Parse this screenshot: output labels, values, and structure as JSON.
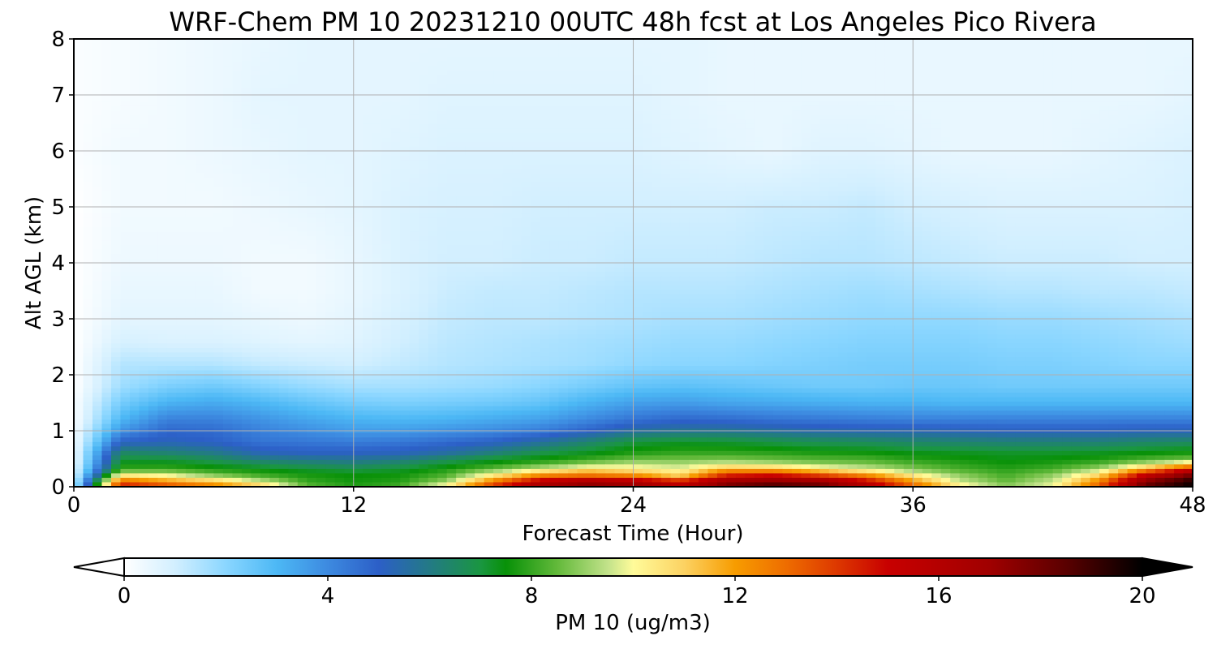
{
  "chart_data": {
    "type": "heatmap",
    "title": "WRF-Chem PM 10  20231210 00UTC 48h fcst at Los Angeles Pico Rivera",
    "xlabel": "Forecast Time (Hour)",
    "ylabel": "Alt AGL (km)",
    "xlim": [
      0,
      48
    ],
    "ylim": [
      0,
      8
    ],
    "x_ticks": [
      "0",
      "12",
      "24",
      "36",
      "48"
    ],
    "y_ticks": [
      "0",
      "1",
      "2",
      "3",
      "4",
      "5",
      "6",
      "7",
      "8"
    ],
    "grid": true,
    "x": [
      0,
      2,
      4,
      6,
      8,
      10,
      12,
      14,
      16,
      18,
      20,
      22,
      24,
      26,
      28,
      30,
      32,
      34,
      36,
      38,
      40,
      42,
      44,
      46,
      48
    ],
    "y": [
      0,
      0.1,
      0.2,
      0.3,
      0.4,
      0.5,
      0.6,
      0.8,
      1.0,
      1.2,
      1.5,
      1.8,
      2.2,
      2.6,
      3.0,
      3.5,
      4.0,
      5.0,
      6.0,
      7.0,
      8.0
    ],
    "colorbar": {
      "label": "PM 10  (ug/m3)",
      "range": [
        0,
        20
      ],
      "ticks": [
        "0",
        "4",
        "8",
        "12",
        "16",
        "20"
      ],
      "extend": "both",
      "stops": [
        [
          0,
          "#ffffff"
        ],
        [
          1,
          "#d2efff"
        ],
        [
          2,
          "#8ad6ff"
        ],
        [
          3,
          "#4cb8f5"
        ],
        [
          4,
          "#3d8ae0"
        ],
        [
          5,
          "#2c5fc7"
        ],
        [
          6,
          "#237a85"
        ],
        [
          7,
          "#1a9641"
        ],
        [
          7.5,
          "#089108"
        ],
        [
          8.5,
          "#62b93a"
        ],
        [
          9.5,
          "#c2e28a"
        ],
        [
          10,
          "#fffb9a"
        ],
        [
          11,
          "#fcd262"
        ],
        [
          12,
          "#f79c00"
        ],
        [
          13,
          "#ee6d00"
        ],
        [
          14,
          "#dd3800"
        ],
        [
          15,
          "#c80000"
        ],
        [
          17,
          "#a00000"
        ],
        [
          18.5,
          "#5a0000"
        ],
        [
          20,
          "#000000"
        ]
      ]
    },
    "values": [
      [
        1.0,
        15.0,
        14.0,
        13.0,
        11.5,
        8.5,
        7.8,
        8.2,
        10.5,
        14.5,
        17.0,
        17.8,
        17.5,
        16.0,
        18.0,
        19.0,
        18.5,
        16.5,
        13.5,
        10.5,
        9.0,
        10.0,
        13.5,
        18.5,
        20.0
      ],
      [
        0.8,
        13.0,
        12.0,
        11.0,
        9.5,
        8.0,
        7.6,
        7.8,
        9.0,
        12.5,
        15.5,
        16.5,
        16.0,
        14.5,
        17.0,
        17.5,
        17.0,
        15.0,
        12.0,
        9.5,
        8.5,
        9.5,
        12.5,
        17.5,
        19.5
      ],
      [
        0.6,
        10.5,
        10.0,
        9.0,
        8.2,
        7.7,
        7.5,
        7.6,
        8.3,
        10.5,
        12.5,
        13.0,
        12.5,
        11.0,
        14.5,
        15.0,
        14.0,
        12.5,
        10.5,
        9.0,
        8.2,
        9.0,
        11.0,
        15.5,
        18.0
      ],
      [
        0.5,
        8.2,
        8.3,
        7.8,
        7.5,
        7.2,
        7.0,
        7.2,
        7.8,
        8.8,
        10.0,
        11.0,
        10.5,
        10.0,
        12.0,
        12.0,
        11.0,
        10.0,
        9.0,
        8.3,
        7.9,
        8.3,
        9.5,
        12.5,
        15.5
      ],
      [
        0.4,
        7.5,
        7.5,
        7.2,
        6.8,
        6.5,
        6.3,
        6.6,
        7.2,
        7.7,
        8.3,
        9.0,
        9.5,
        9.3,
        9.8,
        9.5,
        9.0,
        8.8,
        8.3,
        7.9,
        7.6,
        7.8,
        8.3,
        9.5,
        11.0
      ],
      [
        0.3,
        7.0,
        7.0,
        6.6,
        6.0,
        5.8,
        5.7,
        5.9,
        6.5,
        7.1,
        7.5,
        8.0,
        8.5,
        8.6,
        8.7,
        8.5,
        8.3,
        8.2,
        7.8,
        7.6,
        7.4,
        7.5,
        7.7,
        8.2,
        8.6
      ],
      [
        0.3,
        6.5,
        6.3,
        6.0,
        5.3,
        5.1,
        5.1,
        5.2,
        5.6,
        6.2,
        6.9,
        7.3,
        7.8,
        8.0,
        8.0,
        7.9,
        7.7,
        7.6,
        7.4,
        7.3,
        7.2,
        7.2,
        7.3,
        7.5,
        7.7
      ],
      [
        0.2,
        5.0,
        5.2,
        5.0,
        4.5,
        4.4,
        4.3,
        4.4,
        4.7,
        5.0,
        5.6,
        6.3,
        7.0,
        7.2,
        7.1,
        6.9,
        6.7,
        6.6,
        6.4,
        6.3,
        6.2,
        6.2,
        6.2,
        6.4,
        6.5
      ],
      [
        0.2,
        3.8,
        4.8,
        4.7,
        4.2,
        3.9,
        3.6,
        3.6,
        3.8,
        4.0,
        4.3,
        4.9,
        5.6,
        5.8,
        5.8,
        5.6,
        5.4,
        5.3,
        5.3,
        5.2,
        5.1,
        5.1,
        5.1,
        5.2,
        5.2
      ],
      [
        0.1,
        3.0,
        4.2,
        4.2,
        3.8,
        3.4,
        3.1,
        3.0,
        3.1,
        3.3,
        3.5,
        4.0,
        4.5,
        4.8,
        4.7,
        4.5,
        4.4,
        4.3,
        4.2,
        4.2,
        4.2,
        4.2,
        4.2,
        4.2,
        4.2
      ],
      [
        0.1,
        2.3,
        3.1,
        3.3,
        3.0,
        2.6,
        2.3,
        2.2,
        2.3,
        2.4,
        2.6,
        3.1,
        3.5,
        3.6,
        3.4,
        3.3,
        3.2,
        3.1,
        3.1,
        3.0,
        3.0,
        3.0,
        3.0,
        3.0,
        3.0
      ],
      [
        0.0,
        1.7,
        2.2,
        2.4,
        2.1,
        1.8,
        1.6,
        1.6,
        1.7,
        1.8,
        2.0,
        2.3,
        2.6,
        2.7,
        2.6,
        2.5,
        2.4,
        2.4,
        2.5,
        2.5,
        2.4,
        2.4,
        2.4,
        2.4,
        2.4
      ],
      [
        0.0,
        1.4,
        1.4,
        1.4,
        1.2,
        1.1,
        1.0,
        1.2,
        1.4,
        1.5,
        1.6,
        1.7,
        1.9,
        2.0,
        2.0,
        2.1,
        2.2,
        2.3,
        2.3,
        2.3,
        2.2,
        2.2,
        2.1,
        2.0,
        2.0
      ],
      [
        0.0,
        0.9,
        0.8,
        0.8,
        0.7,
        0.6,
        0.7,
        1.0,
        1.3,
        1.4,
        1.5,
        1.6,
        1.7,
        1.8,
        1.8,
        1.9,
        2.0,
        2.1,
        2.1,
        2.1,
        2.0,
        2.0,
        1.9,
        1.8,
        1.7
      ],
      [
        0.0,
        0.6,
        0.6,
        0.6,
        0.5,
        0.4,
        0.6,
        0.9,
        1.2,
        1.3,
        1.3,
        1.4,
        1.5,
        1.6,
        1.6,
        1.7,
        1.8,
        1.9,
        1.9,
        1.9,
        1.8,
        1.8,
        1.7,
        1.6,
        1.5
      ],
      [
        0.0,
        0.5,
        0.5,
        0.5,
        0.3,
        0.3,
        0.5,
        0.8,
        1.1,
        1.2,
        1.2,
        1.3,
        1.4,
        1.4,
        1.4,
        1.5,
        1.6,
        1.7,
        1.6,
        1.5,
        1.4,
        1.4,
        1.3,
        1.3,
        1.2
      ],
      [
        0.0,
        0.4,
        0.4,
        0.4,
        0.3,
        0.3,
        0.5,
        0.8,
        1.0,
        1.0,
        1.1,
        1.1,
        1.2,
        1.2,
        1.2,
        1.3,
        1.4,
        1.4,
        1.3,
        1.2,
        1.1,
        1.1,
        1.1,
        1.0,
        1.0
      ],
      [
        0.0,
        0.3,
        0.3,
        0.3,
        0.4,
        0.5,
        0.6,
        0.8,
        0.9,
        0.9,
        1.0,
        1.0,
        1.0,
        1.0,
        1.0,
        1.1,
        1.1,
        1.2,
        1.0,
        0.9,
        0.8,
        0.8,
        0.8,
        0.8,
        0.9
      ],
      [
        0.1,
        0.3,
        0.3,
        0.4,
        0.5,
        0.6,
        0.6,
        0.7,
        0.8,
        0.8,
        0.8,
        0.8,
        0.8,
        0.7,
        0.6,
        0.5,
        0.7,
        0.7,
        0.6,
        0.5,
        0.5,
        0.5,
        0.6,
        0.7,
        0.8
      ],
      [
        0.1,
        0.2,
        0.3,
        0.4,
        0.6,
        0.6,
        0.6,
        0.6,
        0.7,
        0.7,
        0.7,
        0.7,
        0.7,
        0.6,
        0.5,
        0.5,
        0.5,
        0.5,
        0.5,
        0.5,
        0.5,
        0.5,
        0.5,
        0.5,
        0.6
      ],
      [
        0.1,
        0.2,
        0.3,
        0.4,
        0.5,
        0.6,
        0.6,
        0.6,
        0.6,
        0.6,
        0.6,
        0.6,
        0.6,
        0.6,
        0.5,
        0.5,
        0.5,
        0.5,
        0.5,
        0.5,
        0.5,
        0.5,
        0.5,
        0.5,
        0.5
      ]
    ]
  }
}
